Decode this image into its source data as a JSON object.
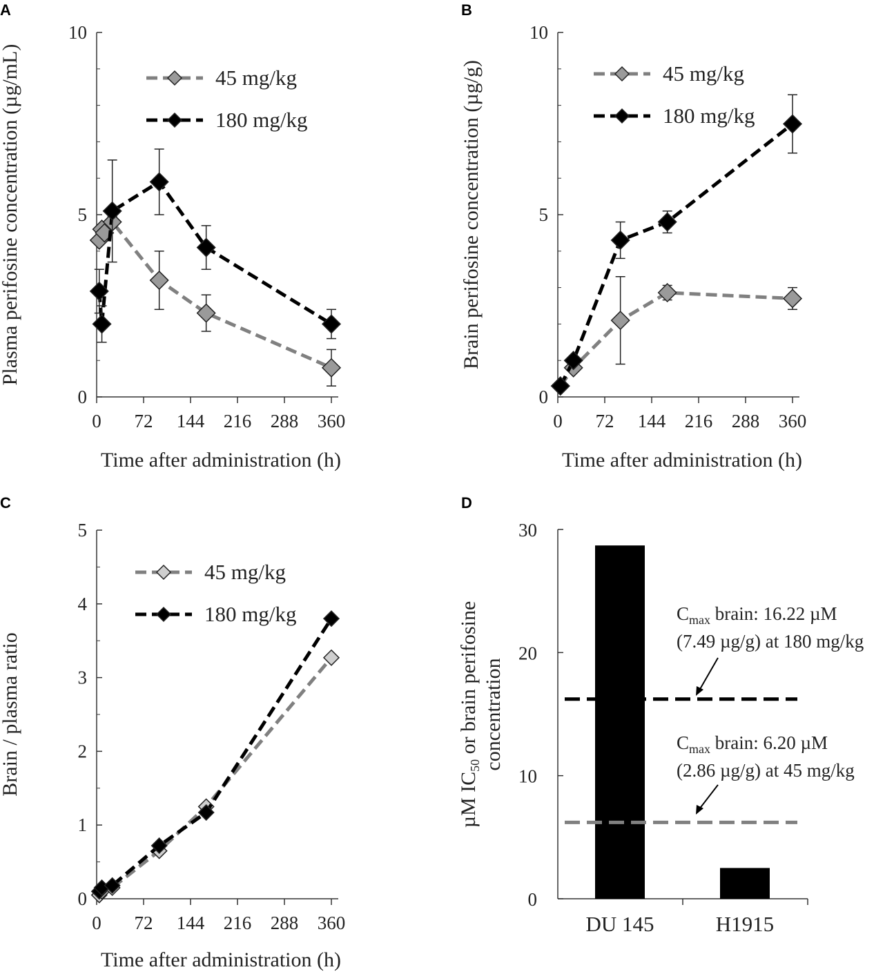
{
  "colors": {
    "dose45": "#808080",
    "dose180": "#000000",
    "axis": "#333333",
    "bar": "#000000"
  },
  "chart_data": [
    {
      "panel": "A",
      "type": "line",
      "ylabel": "Plasma perifosine concentration (µg/mL)",
      "xlabel": "Time after administration (h)",
      "xlim": [
        0,
        360
      ],
      "ylim": [
        0,
        10
      ],
      "xticks": [
        "0",
        "72",
        "144",
        "216",
        "288",
        "360"
      ],
      "yticks": [
        "0",
        "5",
        "10"
      ],
      "legend_position": "top-center",
      "series": [
        {
          "name": "45 mg/kg",
          "x": [
            4,
            8,
            12,
            24,
            96,
            168,
            360
          ],
          "y": [
            4.3,
            4.6,
            4.5,
            4.8,
            3.2,
            2.3,
            0.8
          ],
          "err": [
            0.1,
            0.1,
            0.1,
            0.15,
            0.8,
            0.5,
            0.5
          ]
        },
        {
          "name": "180 mg/kg",
          "x": [
            4,
            8,
            24,
            96,
            168,
            360
          ],
          "y": [
            2.9,
            2.0,
            5.1,
            5.9,
            4.1,
            2.0
          ],
          "err": [
            0.6,
            0.5,
            1.4,
            0.9,
            0.6,
            0.4
          ]
        }
      ]
    },
    {
      "panel": "B",
      "type": "line",
      "ylabel": "Brain perifosine concentration (µg/g)",
      "xlabel": "Time after administration (h)",
      "xlim": [
        0,
        360
      ],
      "ylim": [
        0,
        10
      ],
      "xticks": [
        "0",
        "72",
        "144",
        "216",
        "288",
        "360"
      ],
      "yticks": [
        "0",
        "5",
        "10"
      ],
      "legend_position": "top-left",
      "series": [
        {
          "name": "45 mg/kg",
          "x": [
            4,
            24,
            96,
            168,
            360
          ],
          "y": [
            0.3,
            0.8,
            2.1,
            2.86,
            2.7
          ],
          "err": [
            0.05,
            0.1,
            1.2,
            0.2,
            0.3
          ]
        },
        {
          "name": "180 mg/kg",
          "x": [
            4,
            24,
            96,
            168,
            360
          ],
          "y": [
            0.3,
            1.0,
            4.3,
            4.8,
            7.49
          ],
          "err": [
            0.05,
            0.1,
            0.5,
            0.3,
            0.8
          ]
        }
      ]
    },
    {
      "panel": "C",
      "type": "line",
      "ylabel": "Brain / plasma ratio",
      "xlabel": "Time after administration (h)",
      "xlim": [
        0,
        360
      ],
      "ylim": [
        0,
        5
      ],
      "xticks": [
        "0",
        "72",
        "144",
        "216",
        "288",
        "360"
      ],
      "yticks": [
        "0",
        "1",
        "2",
        "3",
        "4",
        "5"
      ],
      "legend_position": "top-center",
      "series": [
        {
          "name": "45 mg/kg",
          "x": [
            4,
            8,
            24,
            96,
            168,
            360
          ],
          "y": [
            0.05,
            0.1,
            0.15,
            0.65,
            1.25,
            3.27
          ],
          "err": []
        },
        {
          "name": "180 mg/kg",
          "x": [
            4,
            8,
            24,
            96,
            168,
            360
          ],
          "y": [
            0.1,
            0.15,
            0.18,
            0.72,
            1.17,
            3.8
          ],
          "err": []
        }
      ]
    },
    {
      "panel": "D",
      "type": "bar",
      "ylabel_line1": "µM IC",
      "ylabel_sub": "50",
      "ylabel_line1_rest": " or brain perifosine",
      "ylabel_line2": "concentration",
      "categories": [
        "DU 145",
        "H1915"
      ],
      "values": [
        28.7,
        2.5
      ],
      "ylim": [
        0,
        30
      ],
      "yticks": [
        "0",
        "10",
        "20",
        "30"
      ],
      "reference_lines": [
        {
          "name": "180 mg/kg",
          "value": 16.22,
          "label_c": "C",
          "label_sub": "max",
          "label_line1_rest": " brain: 16.22 µM",
          "label_line2": "(7.49 µg/g) at 180 mg/kg"
        },
        {
          "name": "45 mg/kg",
          "value": 6.2,
          "label_c": "C",
          "label_sub": "max",
          "label_line1_rest": " brain: 6.20 µM",
          "label_line2": "(2.86 µg/g) at 45 mg/kg"
        }
      ]
    }
  ]
}
